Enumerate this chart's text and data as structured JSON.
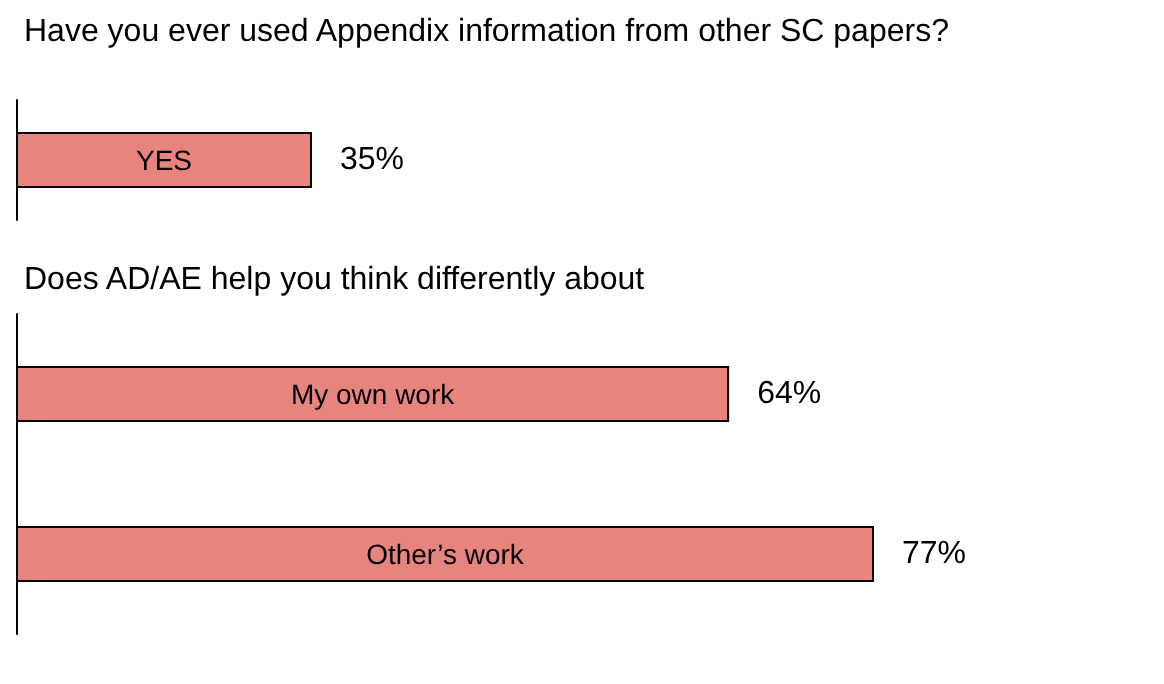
{
  "chart_data": [
    {
      "type": "bar",
      "orientation": "horizontal",
      "title": "Have you ever used Appendix information from other SC papers?",
      "categories": [
        "YES"
      ],
      "values": [
        35
      ],
      "value_labels": [
        "35%"
      ],
      "color": "#e8847e"
    },
    {
      "type": "bar",
      "orientation": "horizontal",
      "title": "Does AD/AE help you think differently about",
      "categories": [
        "My own work",
        "Other’s work"
      ],
      "values": [
        64,
        77
      ],
      "value_labels": [
        "64%",
        "77%"
      ],
      "color": "#e8847e"
    }
  ]
}
